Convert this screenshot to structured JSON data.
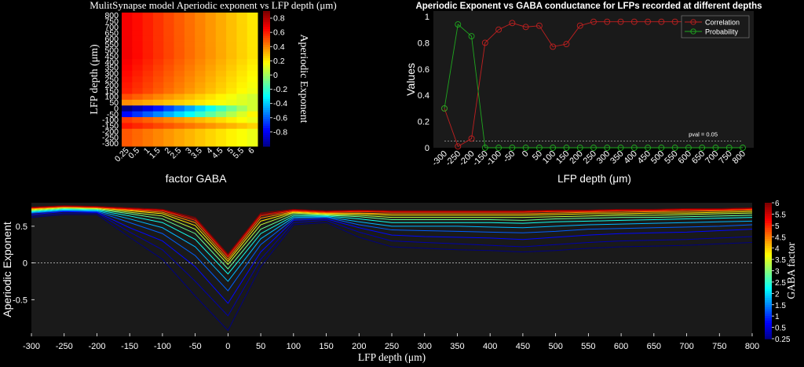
{
  "colors": {
    "background": "#000000",
    "axes_bg": "#1a1a1a",
    "correlation": "#c02020",
    "probability": "#1fa81f",
    "pval_line": "#aaaaaa"
  },
  "chart_data": [
    {
      "type": "heatmap",
      "title": "MulitSynapse model Aperiodic exponent vs LFP depth (μm)",
      "xlabel": "factor GABA",
      "ylabel": "LFP depth (μm)",
      "colorbar_label": "Aperiodic Exponent",
      "colormap": "jet",
      "clim": [
        -1,
        0.9
      ],
      "colorbar_ticks": [
        "0.8",
        "0.6",
        "0.4",
        "0.2",
        "0",
        "-0.2",
        "-0.4",
        "-0.6",
        "-0.8"
      ],
      "x_ticks": [
        "0.25",
        "0.5",
        "1",
        "1.5",
        "2",
        "2.5",
        "3",
        "3.5",
        "4",
        "4.5",
        "5",
        "5.5",
        "6"
      ],
      "y_ticks": [
        "800",
        "750",
        "700",
        "650",
        "600",
        "550",
        "500",
        "450",
        "400",
        "350",
        "300",
        "250",
        "200",
        "150",
        "100",
        "50",
        "0",
        "-50",
        "-100",
        "-150",
        "-200",
        "-250",
        "-300"
      ]
    },
    {
      "type": "line",
      "title": "Aperiodic Exponent vs GABA conductance for LFPs recorded at different depths",
      "xlabel": "LFP depth (μm)",
      "ylabel": "Values",
      "x": [
        "-300",
        "-250",
        "-200",
        "-150",
        "-100",
        "-50",
        "0",
        "50",
        "100",
        "150",
        "200",
        "250",
        "300",
        "350",
        "400",
        "450",
        "500",
        "550",
        "600",
        "650",
        "700",
        "750",
        "800"
      ],
      "ylim": [
        0,
        1
      ],
      "y_ticks": [
        "0",
        "0.2",
        "0.4",
        "0.6",
        "0.8",
        "1"
      ],
      "legend_position": "top-right",
      "series": [
        {
          "name": "Correlation",
          "values": [
            0.3,
            0.01,
            0.07,
            0.8,
            0.9,
            0.95,
            0.92,
            0.93,
            0.77,
            0.79,
            0.93,
            0.96,
            0.96,
            0.96,
            0.96,
            0.96,
            0.96,
            0.96,
            0.96,
            0.96,
            0.96,
            0.96,
            0.96
          ]
        },
        {
          "name": "Probability",
          "values": [
            0.3,
            0.94,
            0.85,
            0.0,
            0.0,
            0.0,
            0.0,
            0.0,
            0.0,
            0.0,
            0.0,
            0.0,
            0.0,
            0.0,
            0.0,
            0.0,
            0.0,
            0.0,
            0.0,
            0.0,
            0.0,
            0.0,
            0.0
          ]
        }
      ],
      "reference_line": {
        "y": 0.05,
        "label": "pval = 0.05"
      }
    },
    {
      "type": "line",
      "xlabel": "LFP depth (μm)",
      "ylabel": "Aperiodic Exponent",
      "colorbar_label": "GABA factor",
      "colorbar_ticks": [
        "6",
        "5.5",
        "5",
        "4.5",
        "4",
        "3.5",
        "3",
        "2.5",
        "2",
        "1.5",
        "1",
        "0.5",
        "0.25"
      ],
      "x": [
        -300,
        -250,
        -200,
        -150,
        -100,
        -50,
        0,
        50,
        100,
        150,
        200,
        250,
        300,
        350,
        400,
        450,
        500,
        550,
        600,
        650,
        700,
        750,
        800
      ],
      "x_ticks": [
        "-300",
        "-250",
        "-200",
        "-150",
        "-100",
        "-50",
        "0",
        "50",
        "100",
        "150",
        "200",
        "250",
        "300",
        "350",
        "400",
        "450",
        "500",
        "550",
        "600",
        "650",
        "700",
        "750",
        "800"
      ],
      "ylim": [
        -1.0,
        0.82
      ],
      "y_ticks": [
        "0.5",
        "0",
        "-0.5"
      ],
      "reference_line": {
        "y": 0
      },
      "series": [
        {
          "name": "0.25",
          "values": [
            0.62,
            0.66,
            0.66,
            0.35,
            0.05,
            -0.45,
            -0.92,
            -0.05,
            0.52,
            0.55,
            0.35,
            0.22,
            0.2,
            0.18,
            0.17,
            0.15,
            0.17,
            0.2,
            0.22,
            0.23,
            0.24,
            0.26,
            0.28
          ]
        },
        {
          "name": "0.5",
          "values": [
            0.64,
            0.68,
            0.68,
            0.42,
            0.18,
            -0.25,
            -0.72,
            0.05,
            0.55,
            0.58,
            0.42,
            0.3,
            0.28,
            0.26,
            0.24,
            0.22,
            0.25,
            0.28,
            0.3,
            0.31,
            0.32,
            0.34,
            0.36
          ]
        },
        {
          "name": "1",
          "values": [
            0.66,
            0.7,
            0.69,
            0.48,
            0.3,
            -0.05,
            -0.55,
            0.15,
            0.58,
            0.6,
            0.48,
            0.38,
            0.36,
            0.35,
            0.34,
            0.32,
            0.35,
            0.38,
            0.4,
            0.41,
            0.42,
            0.44,
            0.46
          ]
        },
        {
          "name": "1.5",
          "values": [
            0.68,
            0.71,
            0.7,
            0.55,
            0.4,
            0.1,
            -0.38,
            0.25,
            0.6,
            0.62,
            0.52,
            0.45,
            0.44,
            0.43,
            0.42,
            0.41,
            0.43,
            0.46,
            0.47,
            0.48,
            0.49,
            0.5,
            0.52
          ]
        },
        {
          "name": "2",
          "values": [
            0.69,
            0.72,
            0.71,
            0.6,
            0.48,
            0.22,
            -0.25,
            0.33,
            0.62,
            0.63,
            0.56,
            0.5,
            0.5,
            0.5,
            0.49,
            0.48,
            0.5,
            0.52,
            0.53,
            0.54,
            0.55,
            0.56,
            0.57
          ]
        },
        {
          "name": "2.5",
          "values": [
            0.7,
            0.73,
            0.72,
            0.64,
            0.55,
            0.32,
            -0.15,
            0.4,
            0.64,
            0.64,
            0.6,
            0.55,
            0.55,
            0.55,
            0.55,
            0.54,
            0.56,
            0.57,
            0.58,
            0.59,
            0.6,
            0.61,
            0.62
          ]
        },
        {
          "name": "3",
          "values": [
            0.71,
            0.74,
            0.73,
            0.67,
            0.6,
            0.4,
            -0.08,
            0.46,
            0.66,
            0.65,
            0.63,
            0.59,
            0.59,
            0.59,
            0.59,
            0.58,
            0.6,
            0.61,
            0.62,
            0.62,
            0.63,
            0.64,
            0.65
          ]
        },
        {
          "name": "3.5",
          "values": [
            0.72,
            0.75,
            0.74,
            0.69,
            0.64,
            0.46,
            -0.02,
            0.52,
            0.68,
            0.66,
            0.65,
            0.62,
            0.62,
            0.62,
            0.62,
            0.62,
            0.63,
            0.64,
            0.65,
            0.65,
            0.66,
            0.67,
            0.68
          ]
        },
        {
          "name": "4",
          "values": [
            0.73,
            0.76,
            0.75,
            0.71,
            0.67,
            0.51,
            0.02,
            0.57,
            0.69,
            0.67,
            0.67,
            0.65,
            0.65,
            0.65,
            0.65,
            0.65,
            0.66,
            0.67,
            0.67,
            0.68,
            0.68,
            0.69,
            0.7
          ]
        },
        {
          "name": "4.5",
          "values": [
            0.74,
            0.76,
            0.75,
            0.72,
            0.69,
            0.55,
            0.05,
            0.61,
            0.7,
            0.68,
            0.68,
            0.67,
            0.67,
            0.67,
            0.67,
            0.67,
            0.68,
            0.69,
            0.69,
            0.7,
            0.7,
            0.71,
            0.72
          ]
        },
        {
          "name": "5",
          "values": [
            0.75,
            0.77,
            0.76,
            0.73,
            0.71,
            0.58,
            0.08,
            0.64,
            0.71,
            0.69,
            0.7,
            0.69,
            0.69,
            0.69,
            0.69,
            0.69,
            0.7,
            0.7,
            0.71,
            0.71,
            0.72,
            0.72,
            0.73
          ]
        },
        {
          "name": "5.5",
          "values": [
            0.75,
            0.77,
            0.76,
            0.74,
            0.72,
            0.6,
            0.1,
            0.66,
            0.72,
            0.7,
            0.71,
            0.7,
            0.7,
            0.7,
            0.7,
            0.7,
            0.71,
            0.71,
            0.72,
            0.72,
            0.73,
            0.73,
            0.74
          ]
        },
        {
          "name": "6",
          "values": [
            0.76,
            0.78,
            0.77,
            0.75,
            0.73,
            0.62,
            0.12,
            0.68,
            0.73,
            0.71,
            0.72,
            0.71,
            0.71,
            0.71,
            0.71,
            0.71,
            0.72,
            0.72,
            0.73,
            0.73,
            0.74,
            0.74,
            0.75
          ]
        }
      ]
    }
  ]
}
